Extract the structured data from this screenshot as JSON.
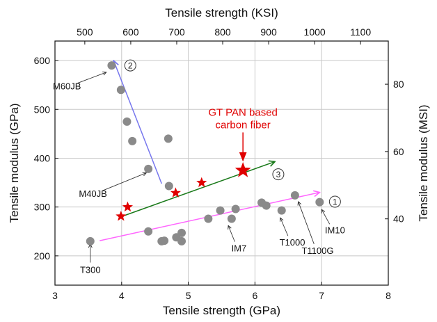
{
  "chart_data": {
    "type": "scatter",
    "title": "",
    "xlabel": "Tensile strength (GPa)",
    "ylabel": "Tensile modulus (GPa)",
    "x2label": "Tensile strength (KSI)",
    "y2label": "Tensile modulus (MSI)",
    "xlim": [
      3,
      8
    ],
    "ylim": [
      140,
      640
    ],
    "x2lim": [
      435.1,
      1160.3
    ],
    "y2lim": [
      20.31,
      92.83
    ],
    "grid": true,
    "x_ticks": [
      "3",
      "4",
      "5",
      "6",
      "7",
      "8"
    ],
    "y_ticks": [
      "200",
      "300",
      "400",
      "500",
      "600"
    ],
    "x2_ticks": [
      "500",
      "600",
      "700",
      "800",
      "900",
      "1000",
      "1100"
    ],
    "y2_ticks": [
      "40",
      "60",
      "80"
    ],
    "series": [
      {
        "name": "",
        "marker": "circle",
        "color": "#8a8a8a",
        "points": [
          [
            3.53,
            230
          ],
          [
            3.85,
            590
          ],
          [
            3.99,
            540
          ],
          [
            4.08,
            475
          ],
          [
            4.16,
            435
          ],
          [
            4.4,
            378
          ],
          [
            4.4,
            250
          ],
          [
            4.6,
            230
          ],
          [
            4.64,
            231
          ],
          [
            4.7,
            440
          ],
          [
            4.71,
            343
          ],
          [
            4.82,
            238
          ],
          [
            4.9,
            247
          ],
          [
            4.9,
            230
          ],
          [
            5.3,
            276
          ],
          [
            5.48,
            293
          ],
          [
            5.65,
            276
          ],
          [
            5.71,
            296
          ],
          [
            6.1,
            309
          ],
          [
            6.17,
            303
          ],
          [
            6.4,
            293
          ],
          [
            6.6,
            324
          ],
          [
            6.97,
            310
          ]
        ]
      },
      {
        "name": "GT PAN based carbon fiber",
        "marker": "star",
        "color": "#e00000",
        "points": [
          [
            3.99,
            281
          ],
          [
            4.09,
            300
          ],
          [
            4.81,
            329
          ],
          [
            5.2,
            350
          ],
          [
            5.82,
            375
          ]
        ]
      }
    ],
    "trend_arrows": [
      {
        "label": "①",
        "color": "#ff66ff",
        "from": [
          3.67,
          231
        ],
        "to": [
          6.97,
          330
        ],
        "label_at": [
          7.2,
          311
        ]
      },
      {
        "label": "②",
        "color": "#7777ee",
        "from": [
          4.6,
          348
        ],
        "to": [
          3.88,
          600
        ],
        "label_at": [
          4.13,
          590
        ]
      },
      {
        "label": "③",
        "color": "#1a7a1a",
        "from": [
          4.05,
          283
        ],
        "to": [
          6.3,
          393
        ],
        "label_at": [
          6.35,
          367
        ]
      }
    ],
    "annotations": [
      {
        "text": "M60JB",
        "anchor": [
          3.77,
          576
        ],
        "pos": [
          3.18,
          548
        ]
      },
      {
        "text": "M40JB",
        "anchor": [
          4.37,
          370
        ],
        "pos": [
          3.57,
          328
        ]
      },
      {
        "text": "T300",
        "anchor": [
          3.53,
          224
        ],
        "pos": [
          3.53,
          172
        ]
      },
      {
        "text": "IM7",
        "anchor": [
          5.6,
          262
        ],
        "pos": [
          5.76,
          216
        ]
      },
      {
        "text": "T1000",
        "anchor": [
          6.38,
          278
        ],
        "pos": [
          6.56,
          228
        ]
      },
      {
        "text": "T1100G",
        "anchor": [
          6.65,
          311
        ],
        "pos": [
          6.94,
          211
        ]
      },
      {
        "text": "IM10",
        "anchor": [
          7.0,
          295
        ],
        "pos": [
          7.2,
          253
        ]
      }
    ],
    "highlight_label": {
      "lines": [
        "GT PAN based",
        "carbon fiber"
      ],
      "pos": [
        5.82,
        487
      ],
      "arrow_to": [
        5.82,
        395
      ],
      "color": "#e00000"
    }
  }
}
